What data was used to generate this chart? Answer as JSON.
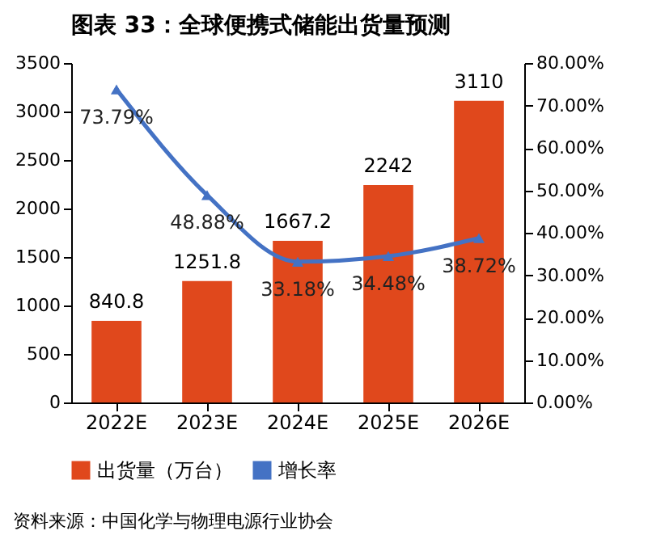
{
  "chart_data": {
    "type": "bar",
    "title": "图表 33：全球便携式储能出货量预测",
    "categories": [
      "2022E",
      "2023E",
      "2024E",
      "2025E",
      "2026E"
    ],
    "series": [
      {
        "name": "出货量（万台）",
        "color": "#e0481c",
        "values": [
          840.8,
          1251.8,
          1667.2,
          2242,
          3110
        ],
        "value_labels": [
          "840.8",
          "1251.8",
          "1667.2",
          "2242",
          "3110"
        ]
      },
      {
        "name": "增长率",
        "type": "line",
        "axis": "y2",
        "color": "#4472c4",
        "marker": "triangle",
        "values": [
          73.79,
          48.88,
          33.18,
          34.48,
          38.72
        ],
        "value_labels": [
          "73.79%",
          "48.88%",
          "33.18%",
          "34.48%",
          "38.72%"
        ]
      }
    ],
    "ylim": [
      0,
      3500
    ],
    "yticks": [
      0,
      500,
      1000,
      1500,
      2000,
      2500,
      3000,
      3500
    ],
    "y2lim": [
      0,
      80
    ],
    "y2ticks": [
      {
        "value": 0,
        "label": "0.00%"
      },
      {
        "value": 10,
        "label": "10.00%"
      },
      {
        "value": 20,
        "label": "20.00%"
      },
      {
        "value": 30,
        "label": "30.00%"
      },
      {
        "value": 40,
        "label": "40.00%"
      },
      {
        "value": 50,
        "label": "50.00%"
      },
      {
        "value": 60,
        "label": "60.00%"
      },
      {
        "value": 70,
        "label": "70.00%"
      },
      {
        "value": 80,
        "label": "80.00%"
      }
    ],
    "grid": false,
    "legend": "bottom",
    "annotations": [
      "资料来源：中国化学与物理电源行业协会"
    ]
  }
}
